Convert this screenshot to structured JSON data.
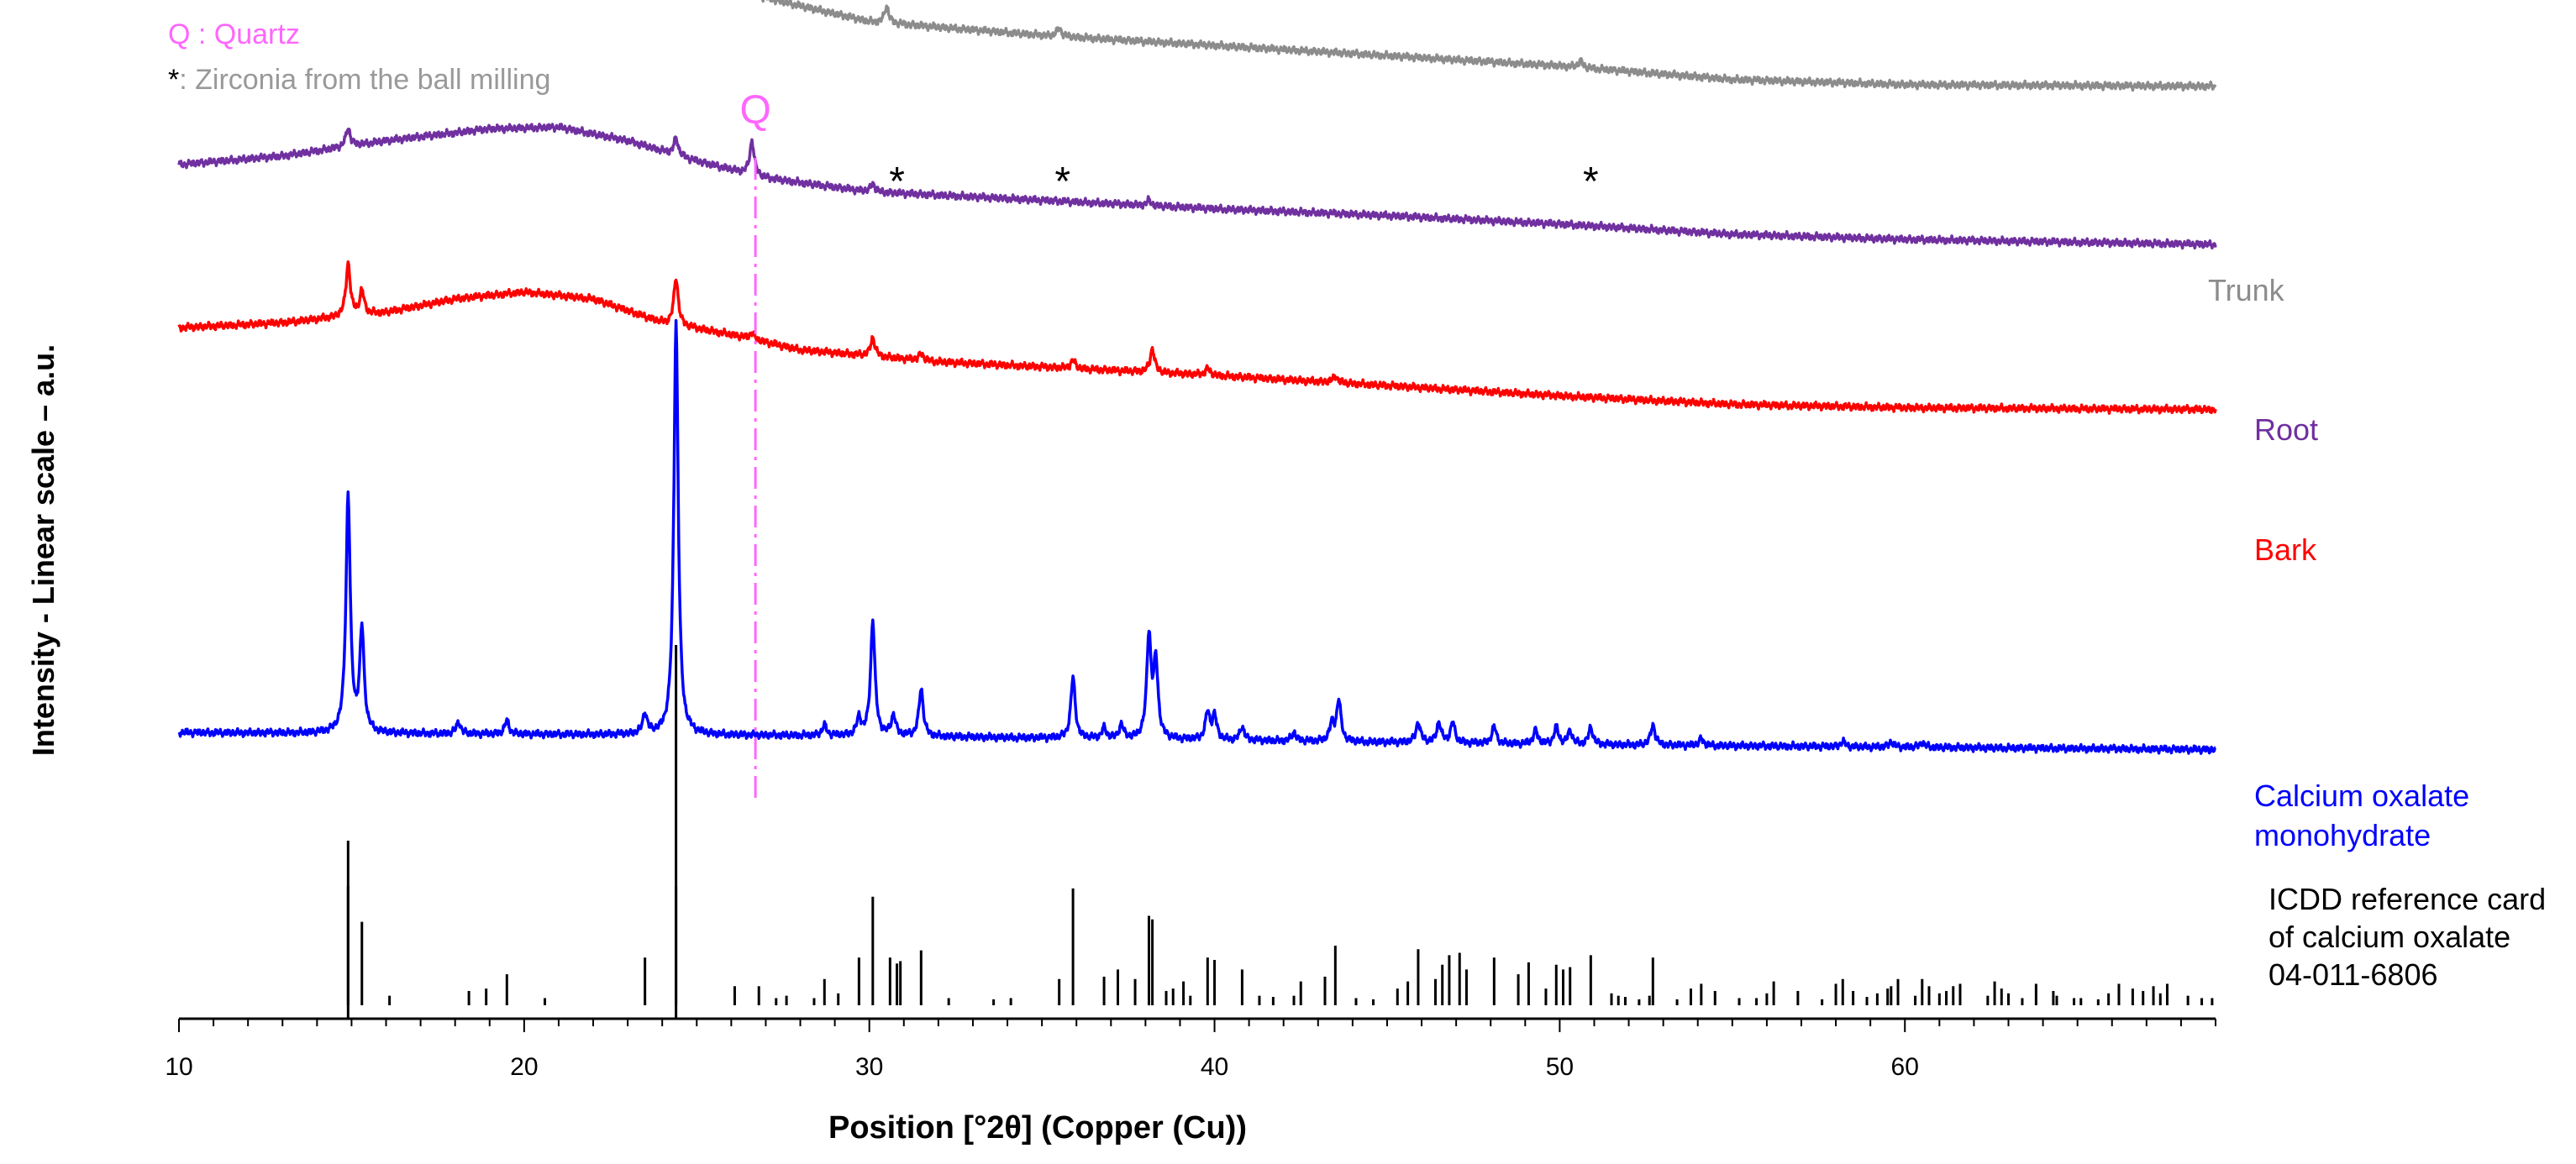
{
  "chart_data": {
    "type": "line",
    "title": "",
    "xlabel": "Position [°2θ] (Copper (Cu))",
    "ylabel": "Intensity - Linear scale – a.u.",
    "xlim": [
      10,
      69
    ],
    "x_ticks": [
      "10",
      "20",
      "30",
      "40",
      "50",
      "60"
    ],
    "x_tick_values": [
      10,
      20,
      30,
      40,
      50,
      60
    ],
    "y_scale": "arbitrary, stacked traces",
    "grid": false,
    "legend": {
      "placement": "top-left",
      "quartz": "Q : Quartz",
      "zirconia_marker": "*",
      "zirconia_text": ": Zirconia from the ball milling"
    },
    "annotations": {
      "quartz_line_x": 26.7,
      "quartz_label": "Q",
      "zirconia_marks": [
        {
          "x": 30.8,
          "label": "*"
        },
        {
          "x": 35.6,
          "label": "*"
        },
        {
          "x": 50.9,
          "label": "*"
        }
      ]
    },
    "series": [
      {
        "name": "Trunk",
        "color": "#8c8c8c",
        "label_lines": [
          "Trunk"
        ],
        "baseline": [
          [
            10,
            0.55
          ],
          [
            13,
            0.8
          ],
          [
            16,
            1.55
          ],
          [
            19,
            1.95
          ],
          [
            21.5,
            2.2
          ],
          [
            23,
            1.75
          ],
          [
            25,
            0.75
          ],
          [
            27,
            0.1
          ],
          [
            30,
            -0.6
          ],
          [
            35,
            -1.0
          ],
          [
            40,
            -1.3
          ],
          [
            45,
            -1.6
          ],
          [
            50,
            -1.9
          ],
          [
            55,
            -2.3
          ],
          [
            60,
            -2.45
          ],
          [
            69,
            -2.5
          ]
        ],
        "peaks": [
          [
            30.5,
            0.5
          ],
          [
            35.5,
            0.25
          ],
          [
            50.6,
            0.2
          ]
        ]
      },
      {
        "name": "Root",
        "color": "#7030a0",
        "label_lines": [
          "Root"
        ],
        "baseline": [
          [
            10,
            -4.8
          ],
          [
            13,
            -4.55
          ],
          [
            16,
            -4.1
          ],
          [
            19,
            -3.75
          ],
          [
            21,
            -3.7
          ],
          [
            23,
            -4.1
          ],
          [
            25,
            -4.7
          ],
          [
            27,
            -5.2
          ],
          [
            30,
            -5.6
          ],
          [
            35,
            -5.85
          ],
          [
            40,
            -6.1
          ],
          [
            45,
            -6.3
          ],
          [
            50,
            -6.55
          ],
          [
            55,
            -6.85
          ],
          [
            60,
            -7.0
          ],
          [
            69,
            -7.15
          ]
        ],
        "peaks": [
          [
            14.9,
            0.55
          ],
          [
            24.4,
            0.5
          ],
          [
            26.6,
            1.0
          ],
          [
            30.1,
            0.25
          ],
          [
            38.1,
            0.15
          ]
        ]
      },
      {
        "name": "Bark",
        "color": "#ff0000",
        "label_lines": [
          "Bark"
        ],
        "baseline": [
          [
            10,
            -9.6
          ],
          [
            13,
            -9.45
          ],
          [
            16,
            -9.15
          ],
          [
            18,
            -8.75
          ],
          [
            20,
            -8.55
          ],
          [
            22,
            -8.75
          ],
          [
            24,
            -9.45
          ],
          [
            26,
            -9.8
          ],
          [
            28,
            -10.25
          ],
          [
            32,
            -10.6
          ],
          [
            36,
            -10.8
          ],
          [
            40,
            -11.0
          ],
          [
            45,
            -11.3
          ],
          [
            50,
            -11.6
          ],
          [
            55,
            -11.85
          ],
          [
            60,
            -11.95
          ],
          [
            69,
            -12.0
          ]
        ],
        "peaks": [
          [
            14.9,
            1.55
          ],
          [
            15.3,
            0.7
          ],
          [
            24.4,
            1.4
          ],
          [
            26.6,
            0.2
          ],
          [
            30.1,
            0.55
          ],
          [
            31.5,
            0.2
          ],
          [
            35.9,
            0.25
          ],
          [
            38.2,
            0.7
          ],
          [
            39.8,
            0.2
          ],
          [
            43.5,
            0.2
          ]
        ]
      },
      {
        "name": "Calcium oxalate monohydrate",
        "color": "#0000ff",
        "label_lines": [
          "Calcium oxalate",
          "monohydrate"
        ],
        "baseline": [
          [
            10,
            -21.5
          ],
          [
            30,
            -21.6
          ],
          [
            50,
            -21.85
          ],
          [
            69,
            -22.0
          ]
        ],
        "peaks": [
          [
            14.9,
            7.0
          ],
          [
            15.3,
            3.0
          ],
          [
            18.1,
            0.35
          ],
          [
            19.5,
            0.4
          ],
          [
            23.5,
            0.6
          ],
          [
            24.4,
            12.2
          ],
          [
            28.7,
            0.3
          ],
          [
            29.7,
            0.5
          ],
          [
            30.1,
            3.4
          ],
          [
            30.7,
            0.6
          ],
          [
            31.5,
            1.4
          ],
          [
            35.9,
            1.8
          ],
          [
            36.8,
            0.3
          ],
          [
            37.3,
            0.4
          ],
          [
            38.1,
            3.0
          ],
          [
            38.3,
            2.2
          ],
          [
            39.8,
            0.8
          ],
          [
            40.0,
            0.7
          ],
          [
            40.8,
            0.4
          ],
          [
            42.3,
            0.25
          ],
          [
            43.4,
            0.5
          ],
          [
            43.6,
            1.2
          ],
          [
            45.9,
            0.6
          ],
          [
            46.5,
            0.6
          ],
          [
            46.9,
            0.6
          ],
          [
            48.1,
            0.5
          ],
          [
            49.3,
            0.4
          ],
          [
            49.9,
            0.5
          ],
          [
            50.3,
            0.4
          ],
          [
            50.9,
            0.5
          ],
          [
            52.7,
            0.6
          ],
          [
            54.1,
            0.2
          ],
          [
            58.2,
            0.15
          ],
          [
            59.6,
            0.15
          ],
          [
            60.5,
            0.15
          ]
        ]
      }
    ],
    "reference_card": {
      "name": "ICDD reference card of calcium oxalate 04-011-6806",
      "label_lines": [
        "ICDD reference card",
        "of calcium oxalate",
        "04-011-6806"
      ],
      "color": "#000000",
      "sticks": [
        [
          14.9,
          100
        ],
        [
          15.3,
          70
        ],
        [
          16.1,
          8
        ],
        [
          18.4,
          12
        ],
        [
          18.9,
          14
        ],
        [
          19.5,
          26
        ],
        [
          20.6,
          6
        ],
        [
          23.5,
          40
        ],
        [
          24.4,
          100
        ],
        [
          26.1,
          16
        ],
        [
          26.8,
          16
        ],
        [
          27.3,
          6
        ],
        [
          27.6,
          8
        ],
        [
          28.4,
          6
        ],
        [
          28.7,
          22
        ],
        [
          29.1,
          10
        ],
        [
          29.7,
          40
        ],
        [
          30.1,
          91
        ],
        [
          30.6,
          40
        ],
        [
          30.8,
          35
        ],
        [
          30.9,
          37
        ],
        [
          31.5,
          46
        ],
        [
          32.3,
          6
        ],
        [
          33.6,
          5
        ],
        [
          34.1,
          6
        ],
        [
          35.5,
          22
        ],
        [
          35.9,
          98
        ],
        [
          36.8,
          24
        ],
        [
          37.2,
          30
        ],
        [
          37.7,
          22
        ],
        [
          38.1,
          75
        ],
        [
          38.2,
          72
        ],
        [
          38.6,
          12
        ],
        [
          38.8,
          14
        ],
        [
          39.1,
          20
        ],
        [
          39.3,
          8
        ],
        [
          39.8,
          40
        ],
        [
          40.0,
          38
        ],
        [
          40.8,
          30
        ],
        [
          41.3,
          8
        ],
        [
          41.7,
          7
        ],
        [
          42.3,
          8
        ],
        [
          42.5,
          20
        ],
        [
          43.2,
          24
        ],
        [
          43.5,
          50
        ],
        [
          44.1,
          6
        ],
        [
          44.6,
          5
        ],
        [
          45.3,
          14
        ],
        [
          45.6,
          20
        ],
        [
          45.9,
          47
        ],
        [
          46.4,
          22
        ],
        [
          46.6,
          34
        ],
        [
          46.8,
          42
        ],
        [
          47.1,
          44
        ],
        [
          47.3,
          30
        ],
        [
          48.1,
          40
        ],
        [
          48.8,
          26
        ],
        [
          49.1,
          36
        ],
        [
          49.6,
          14
        ],
        [
          49.9,
          34
        ],
        [
          50.1,
          30
        ],
        [
          50.3,
          32
        ],
        [
          50.9,
          42
        ],
        [
          51.5,
          10
        ],
        [
          51.7,
          8
        ],
        [
          51.9,
          7
        ],
        [
          52.3,
          5
        ],
        [
          52.6,
          8
        ],
        [
          52.7,
          40
        ],
        [
          53.4,
          5
        ],
        [
          53.8,
          14
        ],
        [
          54.1,
          18
        ],
        [
          54.5,
          12
        ],
        [
          55.2,
          6
        ],
        [
          55.7,
          6
        ],
        [
          56.0,
          10
        ],
        [
          56.2,
          20
        ],
        [
          56.9,
          12
        ],
        [
          57.6,
          5
        ],
        [
          58.0,
          18
        ],
        [
          58.2,
          22
        ],
        [
          58.5,
          12
        ],
        [
          58.9,
          7
        ],
        [
          59.2,
          10
        ],
        [
          59.5,
          14
        ],
        [
          59.6,
          16
        ],
        [
          59.8,
          22
        ],
        [
          60.3,
          8
        ],
        [
          60.5,
          22
        ],
        [
          60.7,
          16
        ],
        [
          61.0,
          10
        ],
        [
          61.2,
          12
        ],
        [
          61.4,
          16
        ],
        [
          61.6,
          18
        ],
        [
          62.4,
          8
        ],
        [
          62.6,
          20
        ],
        [
          62.8,
          14
        ],
        [
          63.0,
          10
        ],
        [
          63.4,
          6
        ],
        [
          63.8,
          18
        ],
        [
          64.3,
          12
        ],
        [
          64.4,
          8
        ],
        [
          64.9,
          6
        ],
        [
          65.1,
          6
        ],
        [
          65.6,
          5
        ],
        [
          65.9,
          10
        ],
        [
          66.2,
          18
        ],
        [
          66.6,
          14
        ],
        [
          66.9,
          12
        ],
        [
          67.2,
          16
        ],
        [
          67.4,
          10
        ],
        [
          67.6,
          18
        ],
        [
          68.2,
          8
        ],
        [
          68.6,
          6
        ],
        [
          68.9,
          6
        ]
      ]
    }
  }
}
